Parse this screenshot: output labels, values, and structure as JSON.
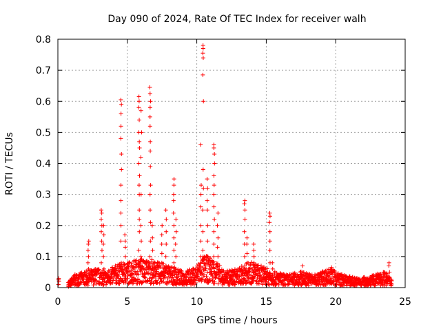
{
  "chart_data": {
    "type": "scatter",
    "title": "Day 090 of 2024, Rate Of TEC Index for receiver walh",
    "xlabel": "GPS time / hours",
    "ylabel": "ROTI / TECUs",
    "xlim": [
      0,
      25
    ],
    "ylim": [
      0,
      0.8
    ],
    "xticks": [
      "0",
      "5",
      "10",
      "15",
      "20",
      "25"
    ],
    "yticks": [
      "0",
      "0.1",
      "0.2",
      "0.3",
      "0.4",
      "0.5",
      "0.6",
      "0.7",
      "0.8"
    ],
    "grid": true,
    "marker": "+",
    "color": "#ff0000",
    "baseline": [
      [
        0.0,
        0.03
      ],
      [
        0.8,
        0.02
      ],
      [
        1.2,
        0.04
      ],
      [
        2.0,
        0.05
      ],
      [
        2.8,
        0.06
      ],
      [
        3.5,
        0.05
      ],
      [
        4.2,
        0.07
      ],
      [
        5.0,
        0.08
      ],
      [
        6.0,
        0.09
      ],
      [
        7.0,
        0.08
      ],
      [
        8.0,
        0.07
      ],
      [
        9.0,
        0.05
      ],
      [
        9.8,
        0.06
      ],
      [
        10.5,
        0.1
      ],
      [
        11.2,
        0.09
      ],
      [
        12.0,
        0.05
      ],
      [
        13.0,
        0.06
      ],
      [
        13.8,
        0.08
      ],
      [
        14.5,
        0.07
      ],
      [
        15.5,
        0.05
      ],
      [
        16.5,
        0.04
      ],
      [
        17.5,
        0.05
      ],
      [
        18.5,
        0.04
      ],
      [
        19.5,
        0.06
      ],
      [
        20.5,
        0.04
      ],
      [
        21.5,
        0.03
      ],
      [
        22.5,
        0.035
      ],
      [
        23.5,
        0.05
      ],
      [
        24.0,
        0.03
      ]
    ],
    "spikes": [
      {
        "x": 0.05,
        "values": [
          0.01,
          0.02,
          0.025,
          0.03
        ]
      },
      {
        "x": 2.2,
        "values": [
          0.06,
          0.08,
          0.1,
          0.12,
          0.14,
          0.15
        ]
      },
      {
        "x": 3.15,
        "values": [
          0.08,
          0.12,
          0.15,
          0.18,
          0.2,
          0.22,
          0.24,
          0.25
        ]
      },
      {
        "x": 3.3,
        "values": [
          0.06,
          0.1,
          0.14,
          0.17,
          0.2
        ]
      },
      {
        "x": 4.55,
        "values": [
          0.08,
          0.15,
          0.2,
          0.24,
          0.28,
          0.33,
          0.38,
          0.43,
          0.48,
          0.52,
          0.56,
          0.59,
          0.605
        ]
      },
      {
        "x": 4.85,
        "values": [
          0.06,
          0.1,
          0.13,
          0.15,
          0.17
        ]
      },
      {
        "x": 5.85,
        "values": [
          0.08,
          0.12,
          0.18,
          0.22,
          0.25,
          0.3,
          0.33,
          0.36,
          0.4,
          0.45,
          0.47,
          0.5,
          0.54,
          0.58,
          0.6,
          0.615
        ]
      },
      {
        "x": 6.0,
        "values": [
          0.06,
          0.1,
          0.15,
          0.2,
          0.3,
          0.42,
          0.5,
          0.57
        ]
      },
      {
        "x": 6.65,
        "values": [
          0.1,
          0.15,
          0.21,
          0.25,
          0.3,
          0.33,
          0.39,
          0.44,
          0.47,
          0.52,
          0.55,
          0.58,
          0.6,
          0.625,
          0.645
        ]
      },
      {
        "x": 6.8,
        "values": [
          0.06,
          0.09,
          0.12,
          0.16,
          0.2
        ]
      },
      {
        "x": 7.5,
        "values": [
          0.05,
          0.08,
          0.11,
          0.14,
          0.17,
          0.2
        ]
      },
      {
        "x": 7.8,
        "values": [
          0.06,
          0.1,
          0.14,
          0.18,
          0.22,
          0.25
        ]
      },
      {
        "x": 8.35,
        "values": [
          0.08,
          0.12,
          0.16,
          0.2,
          0.24,
          0.28,
          0.3,
          0.33,
          0.35
        ]
      },
      {
        "x": 8.5,
        "values": [
          0.06,
          0.1,
          0.14,
          0.18,
          0.22
        ]
      },
      {
        "x": 10.3,
        "values": [
          0.1,
          0.15,
          0.2,
          0.26,
          0.3,
          0.33,
          0.46
        ]
      },
      {
        "x": 10.45,
        "values": [
          0.12,
          0.18,
          0.25,
          0.32,
          0.38,
          0.6,
          0.685,
          0.74,
          0.755,
          0.77,
          0.78
        ]
      },
      {
        "x": 10.75,
        "values": [
          0.1,
          0.15,
          0.2,
          0.25,
          0.28,
          0.32,
          0.35
        ]
      },
      {
        "x": 11.25,
        "values": [
          0.1,
          0.14,
          0.18,
          0.22,
          0.26,
          0.3,
          0.33,
          0.36,
          0.4,
          0.43,
          0.45,
          0.46
        ]
      },
      {
        "x": 11.5,
        "values": [
          0.07,
          0.1,
          0.13,
          0.16,
          0.2,
          0.24
        ]
      },
      {
        "x": 13.45,
        "values": [
          0.06,
          0.1,
          0.14,
          0.18,
          0.22,
          0.25,
          0.27,
          0.28
        ]
      },
      {
        "x": 13.6,
        "values": [
          0.05,
          0.08,
          0.11,
          0.14,
          0.16
        ]
      },
      {
        "x": 14.1,
        "values": [
          0.05,
          0.08,
          0.1,
          0.12,
          0.14
        ]
      },
      {
        "x": 15.25,
        "values": [
          0.05,
          0.08,
          0.12,
          0.15,
          0.18,
          0.21,
          0.23,
          0.24
        ]
      },
      {
        "x": 15.45,
        "values": [
          0.04,
          0.06,
          0.08
        ]
      },
      {
        "x": 17.6,
        "values": [
          0.03,
          0.05,
          0.07
        ]
      },
      {
        "x": 19.7,
        "values": [
          0.03,
          0.05,
          0.06,
          0.065
        ]
      },
      {
        "x": 23.85,
        "values": [
          0.03,
          0.05,
          0.07,
          0.08
        ]
      }
    ]
  }
}
